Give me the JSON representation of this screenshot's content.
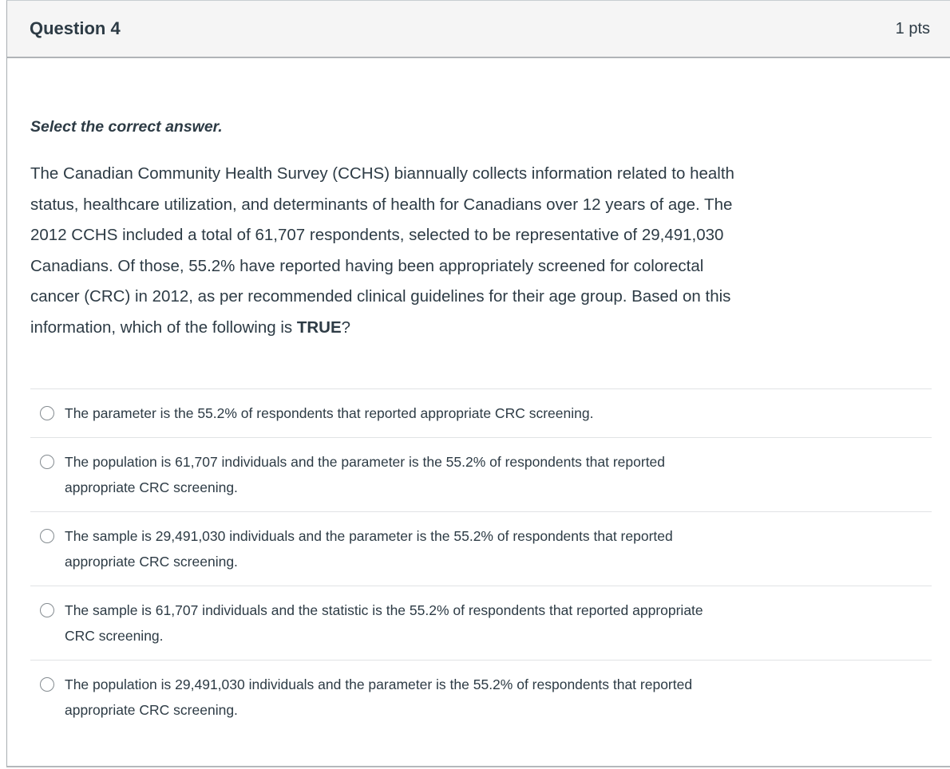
{
  "header": {
    "title": "Question 4",
    "points": "1 pts"
  },
  "question": {
    "prompt": "Select the correct answer.",
    "stem_before_bold": "The Canadian Community Health Survey (CCHS) biannually collects information related to health\nstatus, healthcare utilization, and determinants of health for Canadians over 12 years of age. The\n2012 CCHS included a total of 61,707 respondents, selected to be representative of 29,491,030\nCanadians. Of those, 55.2% have reported having been appropriately screened for colorectal\ncancer (CRC) in 2012, as per recommended clinical guidelines for their age group. Based on this\ninformation, which of the following is ",
    "stem_bold": "TRUE",
    "stem_after_bold": "?"
  },
  "answers": {
    "options": [
      {
        "text": "The parameter is the 55.2% of respondents that reported appropriate CRC screening."
      },
      {
        "text": "The population is 61,707 individuals and the parameter is the 55.2% of respondents that reported\nappropriate CRC screening."
      },
      {
        "text": "The sample is 29,491,030 individuals and the parameter is the 55.2% of respondents that reported\nappropriate CRC screening."
      },
      {
        "text": "The sample is 61,707 individuals and the statistic is the 55.2% of respondents that reported appropriate\nCRC screening."
      },
      {
        "text": "The population is 29,491,030 individuals and the parameter is the 55.2% of respondents that reported\nappropriate CRC screening."
      }
    ]
  },
  "colors": {
    "header_background": "#f5f5f5",
    "text": "#2d3b45",
    "divider": "#e1e3e5",
    "card_border": "#a9aeb2",
    "header_border": "#b0b4b7",
    "radio_border": "#848b90"
  }
}
